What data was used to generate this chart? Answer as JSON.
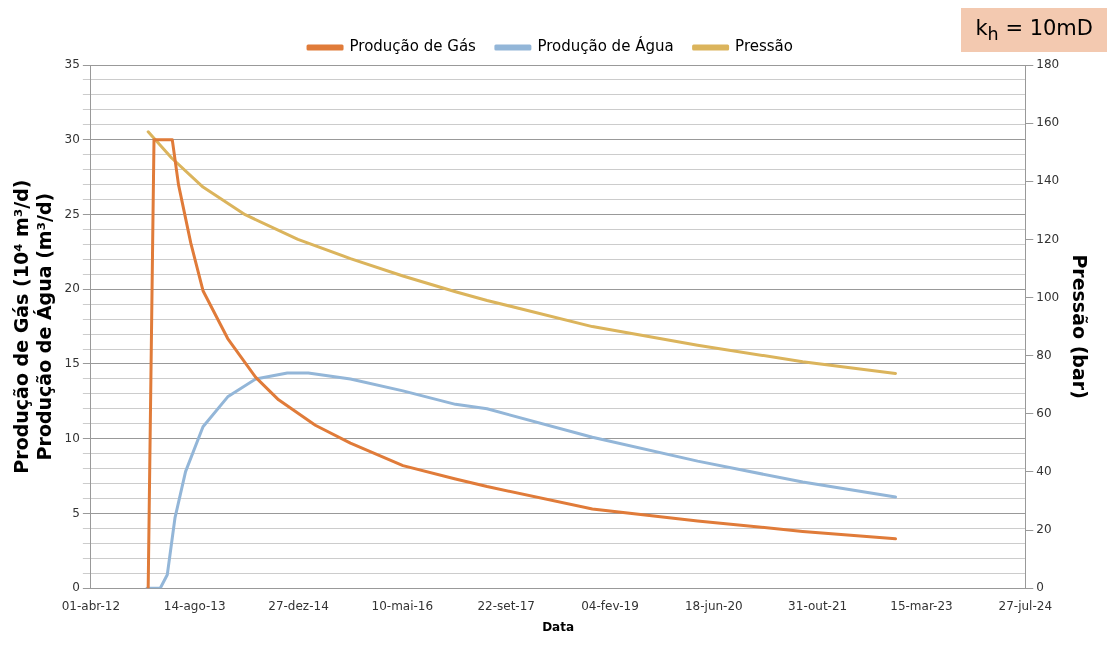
{
  "chart_data": {
    "type": "line",
    "xlabel": "Data",
    "ylabel": "Produção de Gás (10⁴ m³/d)\nProdução de Água (m³/d)",
    "y2label": "Pressão (bar)",
    "annotations": [
      "k$_{h}$ = 10mD"
    ],
    "legend": "top",
    "grid": "y",
    "marker": "none",
    "line_style": "solid",
    "xlim": [
      "2012-04-01",
      "2024-07-27"
    ],
    "xticks": [
      {
        "value": "2012-04-01",
        "label": "01-abr-12"
      },
      {
        "value": "2013-08-14",
        "label": "14-ago-13"
      },
      {
        "value": "2014-12-27",
        "label": "27-dez-14"
      },
      {
        "value": "2016-05-10",
        "label": "10-mai-16"
      },
      {
        "value": "2017-09-22",
        "label": "22-set-17"
      },
      {
        "value": "2019-02-04",
        "label": "04-fev-19"
      },
      {
        "value": "2020-06-18",
        "label": "18-jun-20"
      },
      {
        "value": "2021-10-31",
        "label": "31-out-21"
      },
      {
        "value": "2023-03-15",
        "label": "15-mar-23"
      },
      {
        "value": "2024-07-27",
        "label": "27-jul-24"
      }
    ],
    "ylim": [
      0,
      35
    ],
    "yticks": [
      0,
      {
        "value": 1,
        "label": null
      },
      {
        "value": 2,
        "label": null
      },
      {
        "value": 3,
        "label": null
      },
      {
        "value": 4,
        "label": null
      },
      5,
      {
        "value": 6,
        "label": null
      },
      {
        "value": 7,
        "label": null
      },
      {
        "value": 8,
        "label": null
      },
      {
        "value": 9,
        "label": null
      },
      10,
      {
        "value": 11,
        "label": null
      },
      {
        "value": 12,
        "label": null
      },
      {
        "value": 13,
        "label": null
      },
      {
        "value": 14,
        "label": null
      },
      15,
      {
        "value": 16,
        "label": null
      },
      {
        "value": 17,
        "label": null
      },
      {
        "value": 18,
        "label": null
      },
      {
        "value": 19,
        "label": null
      },
      20,
      {
        "value": 21,
        "label": null
      },
      {
        "value": 22,
        "label": null
      },
      {
        "value": 23,
        "label": null
      },
      {
        "value": 24,
        "label": null
      },
      25,
      {
        "value": 26,
        "label": null
      },
      {
        "value": 27,
        "label": null
      },
      {
        "value": 28,
        "label": null
      },
      {
        "value": 29,
        "label": null
      },
      30,
      {
        "value": 31,
        "label": null
      },
      {
        "value": 32,
        "label": null
      },
      {
        "value": 33,
        "label": null
      },
      {
        "value": 34,
        "label": null
      },
      35
    ],
    "y2lim": [
      0,
      180
    ],
    "y2ticks": [
      0,
      20,
      40,
      60,
      80,
      100,
      120,
      140,
      160,
      180
    ],
    "series": [
      {
        "name": "Produção de Gás",
        "color": "#e07b39",
        "x": [
          "2013-01-02",
          "2013-01-30",
          "2013-04-28",
          "2013-05-28",
          "2013-07-26",
          "2013-09-23",
          "2014-01-20",
          "2014-06-04",
          "2014-09-22",
          "2015-03-18",
          "2015-09-03",
          "2016-05-13",
          "2017-01-21",
          "2017-06-22",
          "2018-11-11",
          "2020-04-01",
          "2021-08-20",
          "2022-11-10"
        ],
        "values": [
          0,
          30,
          30,
          27,
          23.1,
          19.9,
          16.7,
          14.1,
          12.6,
          10.9,
          9.7,
          8.2,
          7.3,
          6.8,
          5.3,
          4.5,
          3.8,
          3.3
        ]
      },
      {
        "name": "Produção de Água",
        "color": "#93b6d8",
        "x": [
          "2012-12-27",
          "2013-03-01",
          "2013-04-04",
          "2013-05-11",
          "2013-07-01",
          "2013-09-23",
          "2014-01-20",
          "2014-06-04",
          "2014-11-03",
          "2015-02-12",
          "2015-09-03",
          "2016-05-13",
          "2017-01-21",
          "2017-06-22",
          "2018-11-11",
          "2020-04-01",
          "2021-08-20",
          "2022-11-10"
        ],
        "values": [
          0,
          0,
          0.9,
          4.7,
          7.8,
          10.8,
          12.8,
          14,
          14.4,
          14.4,
          14,
          13.2,
          12.3,
          12,
          10.1,
          8.5,
          7.1,
          6.1
        ]
      },
      {
        "name": "Pressão",
        "color": "#dbb45c",
        "axis": "y2",
        "x": [
          "2013-01-02",
          "2013-04-25",
          "2013-09-23",
          "2014-04-14",
          "2014-12-24",
          "2015-09-03",
          "2016-05-13",
          "2017-01-21",
          "2017-06-22",
          "2018-11-11",
          "2020-04-01",
          "2021-08-20",
          "2022-11-10"
        ],
        "values": [
          157,
          148,
          138,
          128.5,
          120,
          113.4,
          107.4,
          102,
          99,
          90,
          83.6,
          77.9,
          73.9
        ]
      }
    ]
  }
}
